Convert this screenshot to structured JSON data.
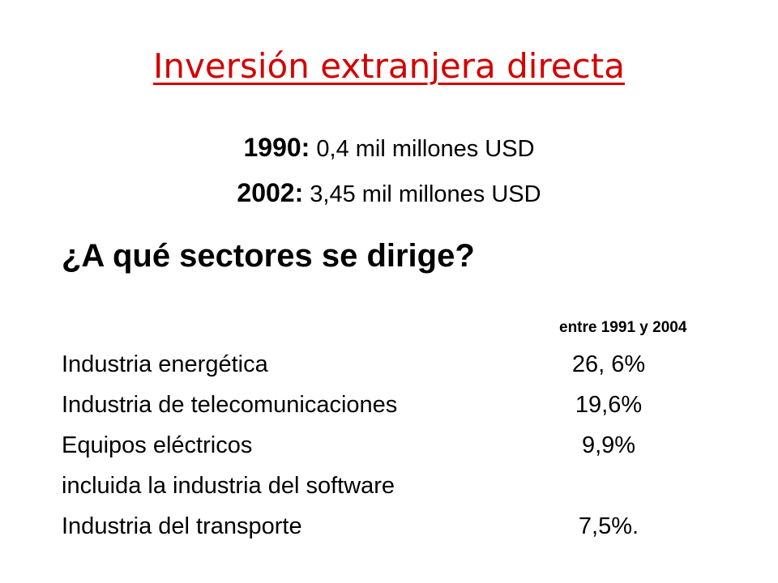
{
  "slide": {
    "title": "Inversión extranjera directa",
    "title_color": "#d40000",
    "stats": [
      {
        "year": "1990:",
        "text": " 0,4 mil millones USD"
      },
      {
        "year": "2002:",
        "text": " 3,45 mil millones USD"
      }
    ],
    "question": "¿A qué sectores se dirige?",
    "period": "entre 1991 y 2004",
    "sectors": [
      {
        "name": "Industria energética",
        "value": "26, 6%"
      },
      {
        "name": "Industria de telecomunicaciones",
        "value": "19,6%"
      },
      {
        "name": "Equipos eléctricos",
        "value": "9,9%"
      },
      {
        "name": "incluida la industria del software",
        "value": ""
      },
      {
        "name": "Industria del transporte",
        "value": "7,5%."
      }
    ]
  }
}
